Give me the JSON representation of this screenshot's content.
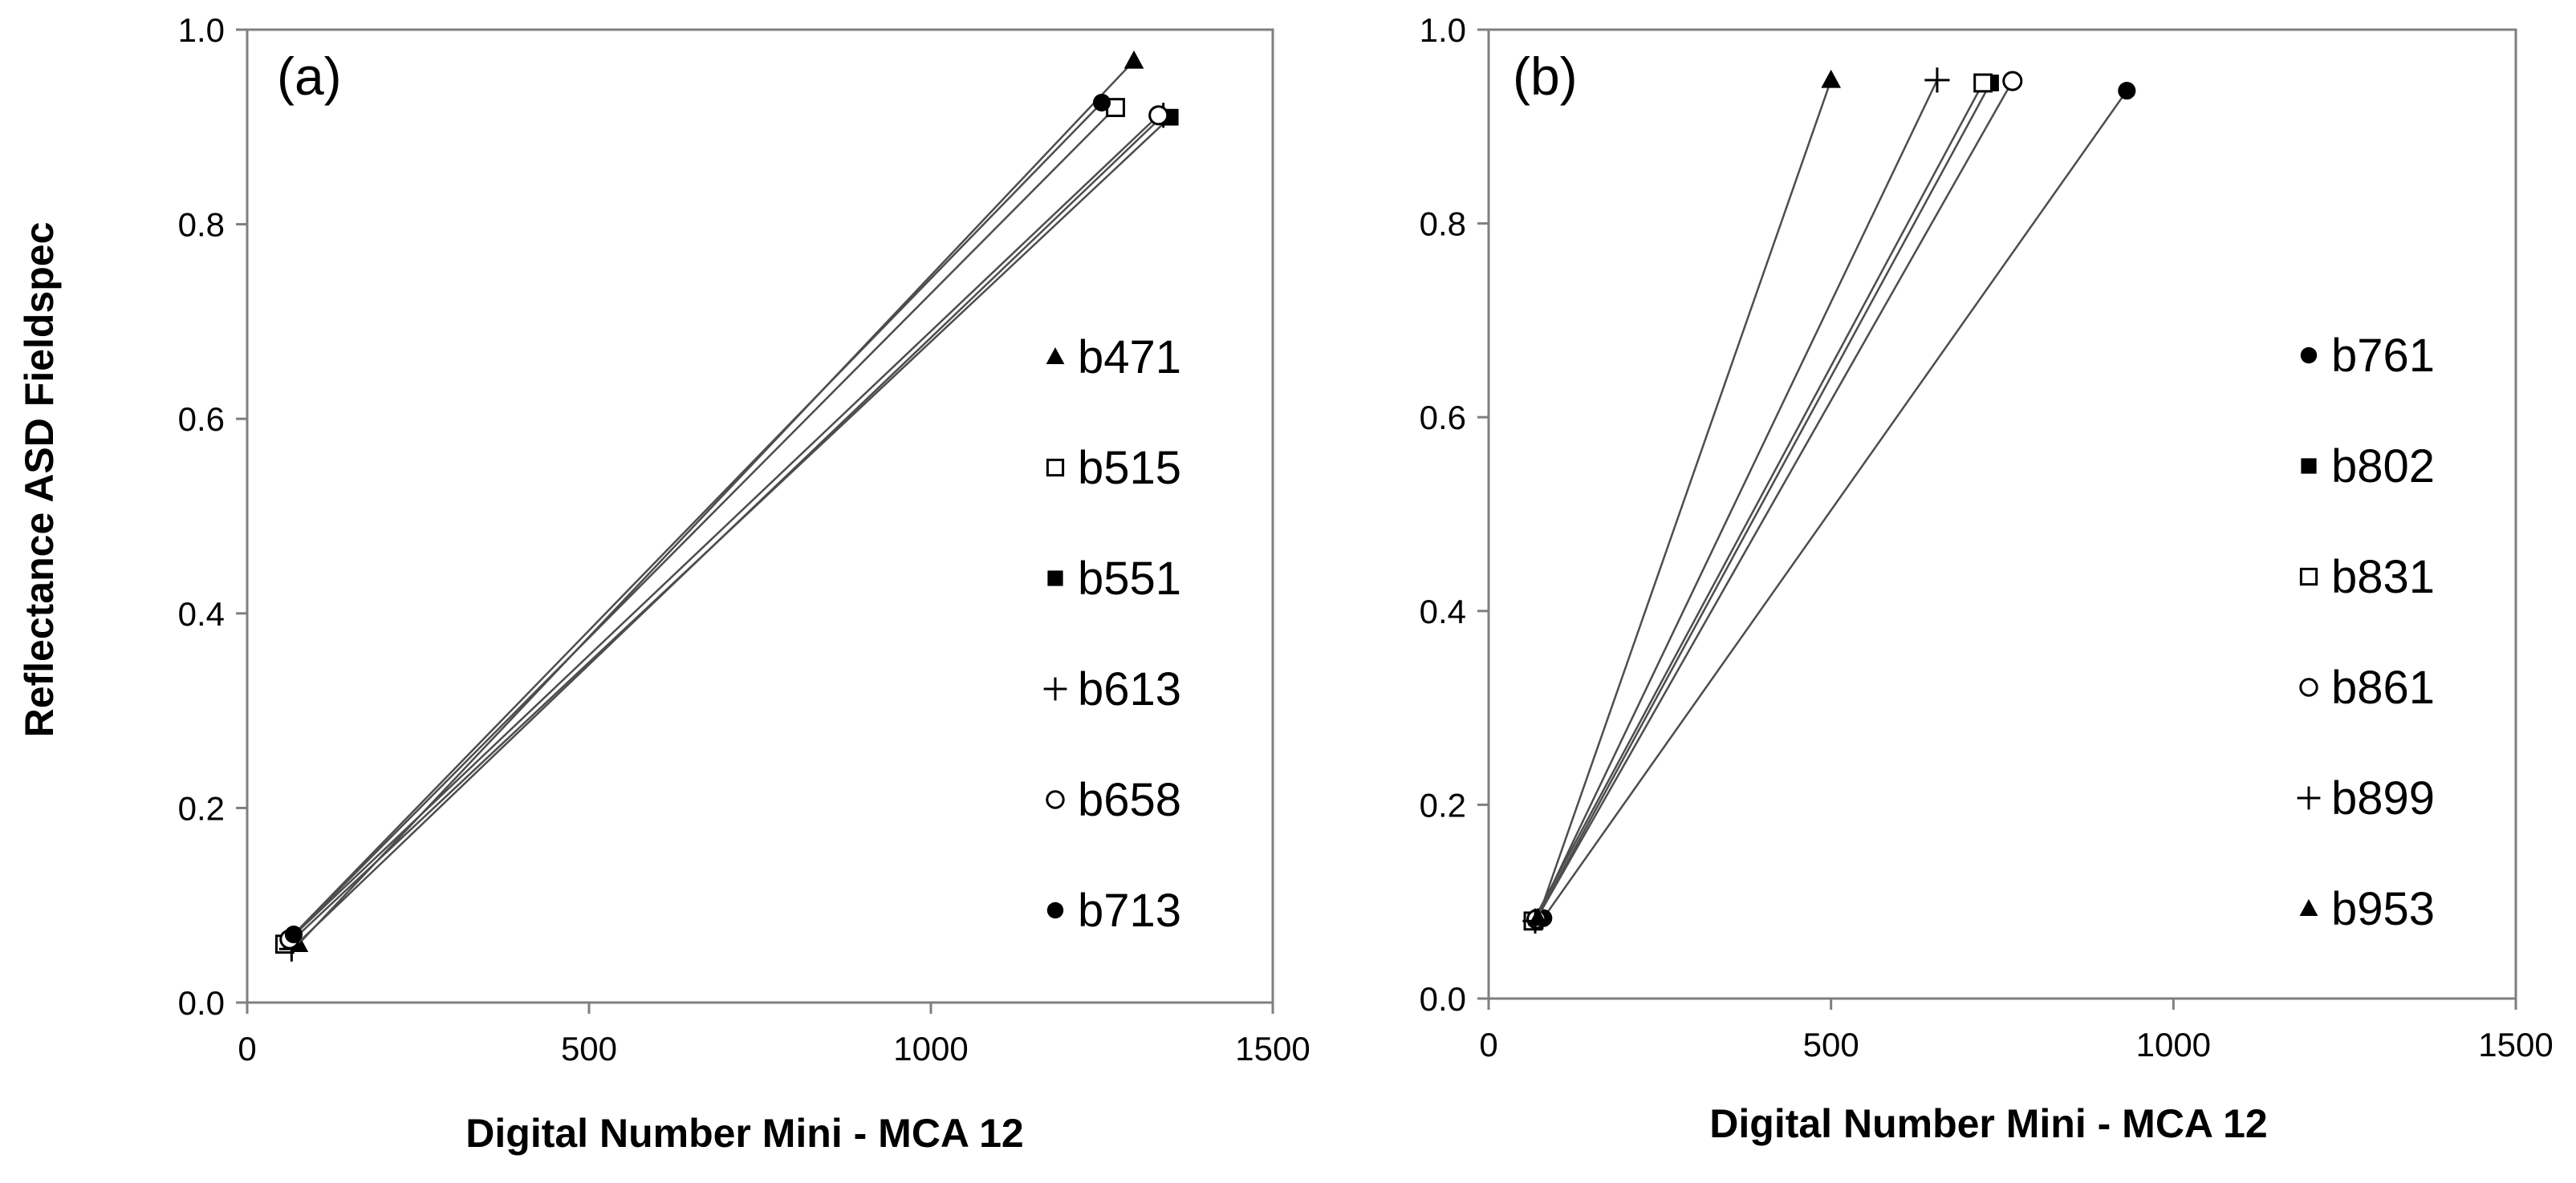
{
  "chart_data": [
    {
      "type": "line",
      "panel_label": "(a)",
      "xlabel": "Digital Number Mini - MCA 12",
      "ylabel": "Reflectance ASD Fieldspec",
      "xlim": [
        0,
        1500
      ],
      "ylim": [
        0.0,
        1.0
      ],
      "xticks": [
        "0",
        "500",
        "1000",
        "1500"
      ],
      "yticks": [
        "0.0",
        "0.2",
        "0.4",
        "0.6",
        "0.8",
        "1.0"
      ],
      "grid": false,
      "legend_position": "right",
      "series": [
        {
          "name": "b471",
          "marker": "triangle",
          "x": [
            75,
            1297
          ],
          "y": [
            0.06,
            0.968
          ]
        },
        {
          "name": "b515",
          "marker": "open-square",
          "x": [
            55,
            1270
          ],
          "y": [
            0.06,
            0.92
          ]
        },
        {
          "name": "b551",
          "marker": "filled-square",
          "x": [
            65,
            1350
          ],
          "y": [
            0.063,
            0.91
          ]
        },
        {
          "name": "b613",
          "marker": "plus",
          "x": [
            65,
            1340
          ],
          "y": [
            0.055,
            0.912
          ]
        },
        {
          "name": "b658",
          "marker": "open-circle",
          "x": [
            62,
            1333
          ],
          "y": [
            0.065,
            0.912
          ]
        },
        {
          "name": "b713",
          "marker": "filled-circle",
          "x": [
            68,
            1250
          ],
          "y": [
            0.07,
            0.925
          ]
        }
      ]
    },
    {
      "type": "line",
      "panel_label": "(b)",
      "xlabel": "Digital Number Mini - MCA 12",
      "ylabel": "",
      "xlim": [
        0,
        1500
      ],
      "ylim": [
        0.0,
        1.0
      ],
      "xticks": [
        "0",
        "500",
        "1000",
        "1500"
      ],
      "yticks": [
        "0.0",
        "0.2",
        "0.4",
        "0.6",
        "0.8",
        "1.0"
      ],
      "grid": false,
      "legend_position": "right",
      "series": [
        {
          "name": "b761",
          "marker": "filled-circle",
          "x": [
            80,
            932
          ],
          "y": [
            0.083,
            0.937
          ]
        },
        {
          "name": "b802",
          "marker": "filled-square",
          "x": [
            68,
            733
          ],
          "y": [
            0.08,
            0.945
          ]
        },
        {
          "name": "b831",
          "marker": "open-square",
          "x": [
            65,
            722
          ],
          "y": [
            0.08,
            0.945
          ]
        },
        {
          "name": "b861",
          "marker": "open-circle",
          "x": [
            70,
            765
          ],
          "y": [
            0.082,
            0.947
          ]
        },
        {
          "name": "b899",
          "marker": "plus",
          "x": [
            68,
            655
          ],
          "y": [
            0.08,
            0.948
          ]
        },
        {
          "name": "b953",
          "marker": "triangle",
          "x": [
            72,
            500
          ],
          "y": [
            0.083,
            0.948
          ]
        }
      ]
    }
  ]
}
